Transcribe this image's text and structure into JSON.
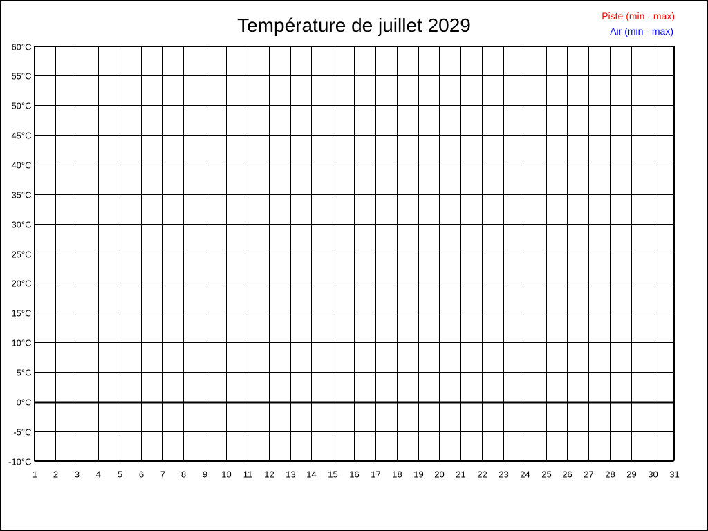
{
  "chart_data": {
    "type": "line",
    "title": "Température de juillet 2029",
    "xlabel": "",
    "ylabel": "",
    "x_ticks": [
      1,
      2,
      3,
      4,
      5,
      6,
      7,
      8,
      9,
      10,
      11,
      12,
      13,
      14,
      15,
      16,
      17,
      18,
      19,
      20,
      21,
      22,
      23,
      24,
      25,
      26,
      27,
      28,
      29,
      30,
      31
    ],
    "xlim": [
      1,
      31
    ],
    "ylim": [
      -10,
      60
    ],
    "y_step": 5,
    "y_unit": "°C",
    "y_tick_labels": [
      "60°C",
      "55°C",
      "50°C",
      "45°C",
      "40°C",
      "35°C",
      "30°C",
      "25°C",
      "20°C",
      "15°C",
      "10°C",
      "5°C",
      "0°C",
      "-5°C",
      "-10°C"
    ],
    "grid": true,
    "zero_line_emphasized": true,
    "legend_position": "top-right",
    "legend": [
      {
        "label": "Piste (min - max)",
        "color": "#ff0000"
      },
      {
        "label": "Air (min - max)",
        "color": "#0000ff"
      }
    ],
    "series": [
      {
        "name": "Piste (min - max)",
        "color": "#ff0000",
        "values": []
      },
      {
        "name": "Air (min - max)",
        "color": "#0000ff",
        "values": []
      }
    ]
  }
}
